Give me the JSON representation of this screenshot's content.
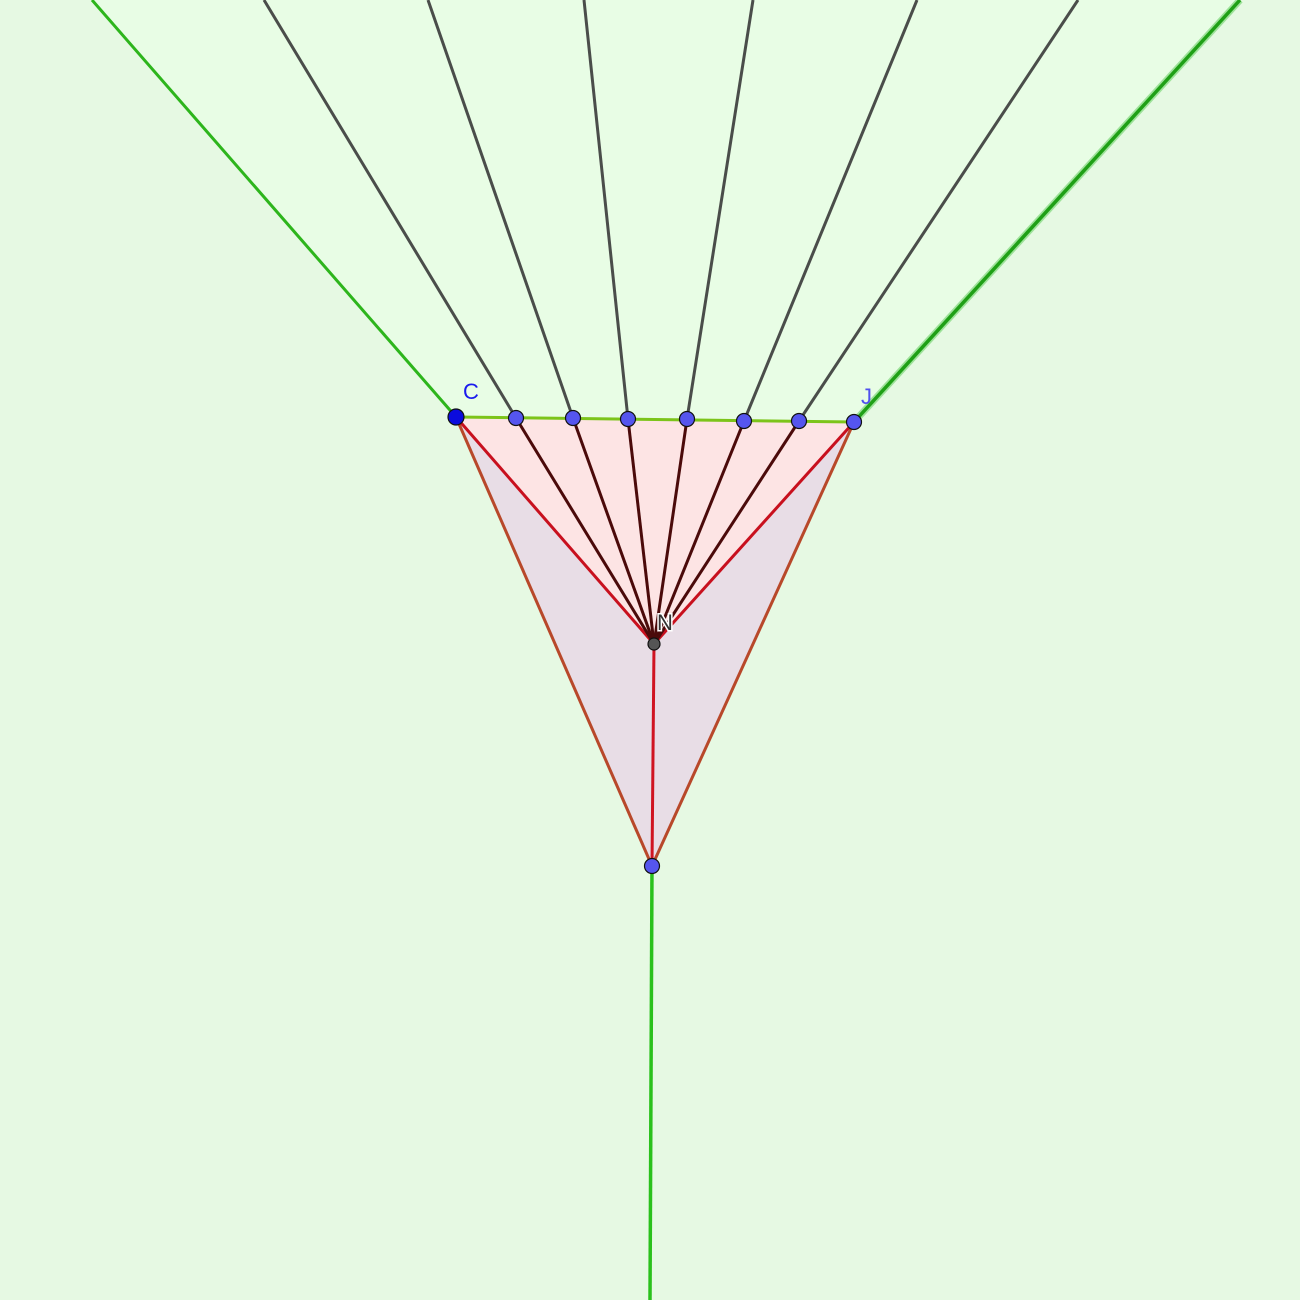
{
  "labels": {
    "point_c": "C",
    "point_j": "J",
    "point_n": "N"
  },
  "colors": {
    "background": "#e6f9e3",
    "upper_region": "#e8fde5",
    "triangle_upper_fill": "#fde4e4",
    "triangle_lower_fill": "#e8dde6",
    "boundary_green": "#2db51c",
    "ray_dark": "#4a4d4a",
    "spoke_dark": "#4b0a0a",
    "spoke_red": "#c8101e",
    "triangle_edge": "#b8482a",
    "point_blue": "#5555ee",
    "point_c": "#0b0bdd",
    "point_n": "#555555",
    "label_blue": "#1a1aee",
    "label_n": "#333333"
  }
}
